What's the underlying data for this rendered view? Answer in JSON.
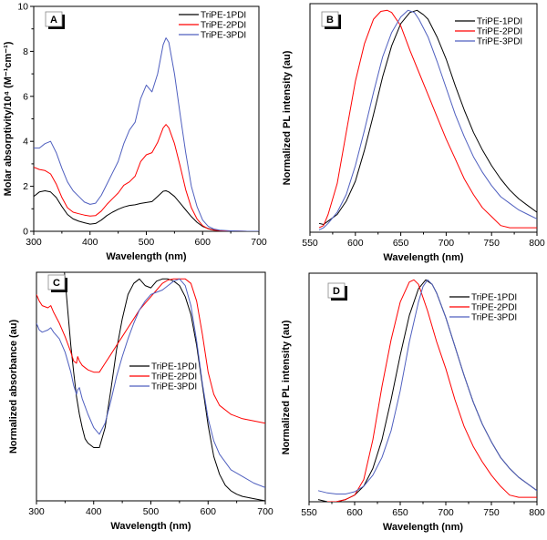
{
  "chart_data": [
    {
      "panel": "A",
      "type": "line",
      "title": "",
      "xlabel": "Wavelength (nm)",
      "ylabel": "Molar absorptivity/10⁴ (M⁻¹cm⁻¹)",
      "xlim": [
        300,
        700
      ],
      "ylim": [
        0,
        10
      ],
      "xticks": [
        300,
        400,
        500,
        600,
        700
      ],
      "yticks": [
        0,
        2,
        4,
        6,
        8,
        10
      ],
      "show_ytick_labels": true,
      "grid": false,
      "legend": "top-right",
      "series": [
        {
          "name": "TriPE-1PDI",
          "color": "#000000",
          "x": [
            300,
            310,
            320,
            330,
            340,
            350,
            360,
            370,
            380,
            390,
            400,
            410,
            420,
            430,
            440,
            450,
            460,
            470,
            480,
            490,
            500,
            510,
            520,
            530,
            535,
            540,
            550,
            560,
            570,
            580,
            590,
            600,
            610,
            620,
            630,
            650,
            680,
            700
          ],
          "y": [
            1.55,
            1.75,
            1.8,
            1.75,
            1.5,
            1.1,
            0.75,
            0.55,
            0.45,
            0.38,
            0.32,
            0.35,
            0.5,
            0.7,
            0.85,
            0.98,
            1.08,
            1.15,
            1.18,
            1.24,
            1.28,
            1.32,
            1.55,
            1.78,
            1.8,
            1.75,
            1.55,
            1.25,
            0.95,
            0.65,
            0.4,
            0.22,
            0.12,
            0.06,
            0.03,
            0.01,
            0.0,
            0.0
          ]
        },
        {
          "name": "TriPE-2PDI",
          "color": "#ff0000",
          "x": [
            300,
            310,
            320,
            330,
            340,
            350,
            360,
            370,
            380,
            390,
            400,
            410,
            420,
            430,
            440,
            450,
            460,
            470,
            480,
            490,
            500,
            510,
            520,
            530,
            535,
            540,
            550,
            560,
            570,
            580,
            590,
            600,
            610,
            620,
            630,
            650,
            680,
            700
          ],
          "y": [
            2.85,
            2.75,
            2.7,
            2.55,
            2.1,
            1.5,
            1.05,
            0.85,
            0.78,
            0.72,
            0.68,
            0.7,
            0.9,
            1.2,
            1.45,
            1.7,
            2.05,
            2.2,
            2.45,
            3.1,
            3.4,
            3.5,
            3.95,
            4.6,
            4.75,
            4.6,
            3.9,
            2.9,
            1.85,
            1.05,
            0.55,
            0.25,
            0.11,
            0.05,
            0.03,
            0.01,
            0.0,
            0.0
          ]
        },
        {
          "name": "TriPE-3PDI",
          "color": "#4f5fbf",
          "x": [
            300,
            310,
            320,
            330,
            340,
            350,
            360,
            370,
            380,
            390,
            400,
            410,
            420,
            430,
            440,
            450,
            460,
            470,
            480,
            490,
            500,
            510,
            520,
            530,
            535,
            540,
            550,
            560,
            570,
            580,
            590,
            600,
            610,
            620,
            630,
            650,
            680,
            700
          ],
          "y": [
            3.7,
            3.7,
            3.9,
            4.0,
            3.5,
            2.8,
            2.2,
            1.8,
            1.55,
            1.3,
            1.2,
            1.25,
            1.6,
            2.1,
            2.6,
            3.1,
            3.9,
            4.5,
            4.85,
            5.9,
            6.5,
            6.2,
            7.0,
            8.3,
            8.6,
            8.4,
            7.0,
            5.2,
            3.5,
            2.0,
            1.1,
            0.5,
            0.22,
            0.1,
            0.05,
            0.02,
            0.0,
            0.0
          ]
        }
      ]
    },
    {
      "panel": "B",
      "type": "line",
      "title": "",
      "xlabel": "Wavelength (nm)",
      "ylabel": "Normalized PL intensity (au)",
      "xlim": [
        550,
        800
      ],
      "ylim": [
        0,
        1.03
      ],
      "xticks": [
        550,
        600,
        650,
        700,
        750,
        800
      ],
      "yticks": [],
      "show_ytick_labels": false,
      "grid": false,
      "legend": "top-right",
      "series": [
        {
          "name": "TriPE-1PDI",
          "color": "#000000",
          "x": [
            560,
            565,
            570,
            580,
            590,
            600,
            610,
            620,
            630,
            640,
            650,
            660,
            668,
            675,
            680,
            690,
            700,
            710,
            720,
            730,
            740,
            750,
            760,
            770,
            780,
            790,
            800
          ],
          "y": [
            0.04,
            0.035,
            0.05,
            0.08,
            0.14,
            0.23,
            0.37,
            0.53,
            0.7,
            0.84,
            0.94,
            0.99,
            1.0,
            0.98,
            0.96,
            0.88,
            0.78,
            0.66,
            0.55,
            0.45,
            0.37,
            0.3,
            0.24,
            0.19,
            0.15,
            0.12,
            0.09
          ]
        },
        {
          "name": "TriPE-2PDI",
          "color": "#ff0000",
          "x": [
            560,
            565,
            570,
            580,
            590,
            600,
            610,
            620,
            628,
            635,
            640,
            650,
            660,
            670,
            680,
            690,
            700,
            710,
            720,
            730,
            740,
            750,
            760,
            770,
            780,
            790,
            800
          ],
          "y": [
            0.02,
            0.03,
            0.08,
            0.22,
            0.45,
            0.68,
            0.85,
            0.96,
            0.995,
            1.0,
            0.99,
            0.93,
            0.82,
            0.72,
            0.62,
            0.52,
            0.42,
            0.33,
            0.24,
            0.17,
            0.11,
            0.07,
            0.03,
            0.02,
            0.02,
            0.02,
            0.02
          ]
        },
        {
          "name": "TriPE-3PDI",
          "color": "#4f5fbf",
          "x": [
            560,
            565,
            570,
            580,
            590,
            600,
            610,
            620,
            630,
            640,
            650,
            658,
            665,
            670,
            680,
            690,
            700,
            710,
            720,
            730,
            740,
            750,
            760,
            770,
            780,
            790,
            800
          ],
          "y": [
            0.01,
            0.02,
            0.04,
            0.09,
            0.17,
            0.3,
            0.46,
            0.63,
            0.79,
            0.9,
            0.97,
            1.0,
            0.99,
            0.96,
            0.88,
            0.77,
            0.65,
            0.53,
            0.43,
            0.34,
            0.27,
            0.21,
            0.16,
            0.13,
            0.1,
            0.08,
            0.06
          ]
        }
      ]
    },
    {
      "panel": "C",
      "type": "line",
      "title": "",
      "xlabel": "Wavelength (nm)",
      "ylabel": "Normalized absorbance (au)",
      "xlim": [
        300,
        700
      ],
      "ylim": [
        0,
        1.03
      ],
      "xticks": [
        300,
        400,
        500,
        600,
        700
      ],
      "yticks": [],
      "show_ytick_labels": false,
      "grid": false,
      "legend": "center",
      "series": [
        {
          "name": "TriPE-1PDI",
          "color": "#000000",
          "x": [
            348,
            355,
            360,
            365,
            370,
            375,
            380,
            385,
            390,
            400,
            410,
            420,
            430,
            440,
            450,
            460,
            470,
            480,
            490,
            500,
            510,
            520,
            530,
            540,
            550,
            560,
            570,
            580,
            590,
            600,
            610,
            620,
            630,
            640,
            650,
            660,
            680,
            700
          ],
          "y": [
            1.06,
            0.85,
            0.7,
            0.58,
            0.47,
            0.39,
            0.33,
            0.28,
            0.26,
            0.24,
            0.24,
            0.33,
            0.5,
            0.68,
            0.82,
            0.93,
            0.98,
            1.0,
            0.97,
            0.96,
            0.99,
            1.0,
            1.0,
            0.99,
            0.97,
            0.92,
            0.84,
            0.7,
            0.52,
            0.34,
            0.2,
            0.12,
            0.07,
            0.045,
            0.03,
            0.02,
            0.01,
            0.0
          ]
        },
        {
          "name": "TriPE-2PDI",
          "color": "#ff0000",
          "x": [
            300,
            305,
            310,
            320,
            325,
            330,
            340,
            350,
            360,
            365,
            370,
            372,
            375,
            380,
            390,
            400,
            410,
            420,
            430,
            440,
            450,
            460,
            470,
            480,
            490,
            500,
            510,
            520,
            530,
            540,
            550,
            560,
            570,
            580,
            590,
            600,
            610,
            620,
            640,
            660,
            680,
            700
          ],
          "y": [
            0.93,
            0.9,
            0.88,
            0.87,
            0.88,
            0.85,
            0.8,
            0.74,
            0.67,
            0.63,
            0.62,
            0.65,
            0.63,
            0.61,
            0.59,
            0.58,
            0.58,
            0.62,
            0.66,
            0.7,
            0.74,
            0.78,
            0.82,
            0.86,
            0.89,
            0.92,
            0.95,
            0.98,
            0.995,
            1.0,
            1.0,
            1.0,
            0.98,
            0.9,
            0.75,
            0.58,
            0.48,
            0.43,
            0.39,
            0.37,
            0.36,
            0.35
          ]
        },
        {
          "name": "TriPE-3PDI",
          "color": "#4f5fbf",
          "x": [
            300,
            305,
            310,
            320,
            325,
            330,
            340,
            350,
            360,
            365,
            370,
            372,
            375,
            380,
            390,
            400,
            410,
            420,
            430,
            440,
            450,
            460,
            470,
            480,
            490,
            500,
            510,
            520,
            530,
            540,
            550,
            560,
            570,
            580,
            590,
            600,
            610,
            620,
            640,
            660,
            680,
            700
          ],
          "y": [
            0.8,
            0.77,
            0.76,
            0.77,
            0.78,
            0.76,
            0.73,
            0.67,
            0.58,
            0.52,
            0.48,
            0.5,
            0.51,
            0.46,
            0.39,
            0.33,
            0.3,
            0.35,
            0.45,
            0.56,
            0.65,
            0.73,
            0.8,
            0.86,
            0.9,
            0.93,
            0.94,
            0.95,
            0.97,
            0.99,
            1.0,
            0.97,
            0.88,
            0.72,
            0.53,
            0.37,
            0.27,
            0.21,
            0.14,
            0.11,
            0.08,
            0.06
          ]
        }
      ]
    },
    {
      "panel": "D",
      "type": "line",
      "title": "",
      "xlabel": "Wavelength (nm)",
      "ylabel": "Normalized PL intensity (au)",
      "xlim": [
        550,
        800
      ],
      "ylim": [
        0,
        1.03
      ],
      "xticks": [
        550,
        600,
        650,
        700,
        750,
        800
      ],
      "yticks": [],
      "show_ytick_labels": false,
      "grid": false,
      "legend": "top-right",
      "series": [
        {
          "name": "TriPE-1PDI",
          "color": "#000000",
          "x": [
            560,
            570,
            580,
            590,
            600,
            610,
            620,
            630,
            640,
            650,
            660,
            670,
            678,
            685,
            690,
            700,
            710,
            720,
            730,
            740,
            750,
            760,
            770,
            780,
            790,
            800
          ],
          "y": [
            0.01,
            0.0,
            0.0,
            0.01,
            0.03,
            0.07,
            0.15,
            0.28,
            0.46,
            0.66,
            0.84,
            0.96,
            1.0,
            0.98,
            0.94,
            0.83,
            0.7,
            0.57,
            0.45,
            0.35,
            0.27,
            0.2,
            0.15,
            0.11,
            0.08,
            0.05
          ]
        },
        {
          "name": "TriPE-2PDI",
          "color": "#ff0000",
          "x": [
            570,
            580,
            590,
            600,
            610,
            620,
            630,
            640,
            650,
            660,
            665,
            670,
            680,
            690,
            700,
            710,
            720,
            730,
            740,
            750,
            760,
            770,
            780,
            790,
            800
          ],
          "y": [
            0.0,
            0.0,
            0.01,
            0.03,
            0.1,
            0.28,
            0.52,
            0.73,
            0.9,
            0.99,
            1.0,
            0.98,
            0.86,
            0.72,
            0.6,
            0.46,
            0.34,
            0.25,
            0.18,
            0.12,
            0.07,
            0.03,
            0.02,
            0.02,
            0.02
          ]
        },
        {
          "name": "TriPE-3PDI",
          "color": "#4f5fbf",
          "x": [
            560,
            570,
            580,
            590,
            600,
            610,
            620,
            630,
            640,
            650,
            660,
            670,
            675,
            680,
            685,
            690,
            700,
            710,
            720,
            730,
            740,
            750,
            760,
            770,
            780,
            790,
            800
          ],
          "y": [
            0.05,
            0.04,
            0.035,
            0.035,
            0.045,
            0.07,
            0.12,
            0.2,
            0.32,
            0.5,
            0.72,
            0.9,
            0.97,
            1.0,
            0.98,
            0.94,
            0.83,
            0.7,
            0.57,
            0.45,
            0.35,
            0.27,
            0.2,
            0.15,
            0.11,
            0.08,
            0.05
          ]
        }
      ]
    }
  ]
}
